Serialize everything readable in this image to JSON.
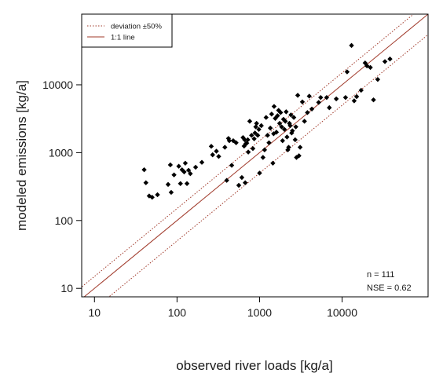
{
  "chart_data": {
    "type": "scatter",
    "xlabel": "observed river loads [kg/a]",
    "ylabel": "modeled emissions [kg/a]",
    "x_scale": "log",
    "y_scale": "log",
    "xlim": [
      7,
      110000
    ],
    "ylim": [
      7.5,
      110000
    ],
    "x_ticks": [
      10,
      100,
      1000,
      10000
    ],
    "x_tick_labels": [
      "10",
      "100",
      "1000",
      "10000"
    ],
    "y_ticks": [
      10,
      100,
      1000,
      10000
    ],
    "y_tick_labels": [
      "10",
      "100",
      "1000",
      "10000"
    ],
    "grid": false,
    "legend": {
      "placement": "top-left",
      "entries": [
        {
          "label": "deviation ±50%",
          "style": "dotted",
          "color": "#a0392a"
        },
        {
          "label": "1:1 line",
          "style": "solid",
          "color": "#a0392a"
        }
      ]
    },
    "annotations": [
      "n = 111",
      "NSE = 0.62"
    ],
    "colors": {
      "points": "#000000",
      "line": "#a0392a",
      "frame": "#000000"
    },
    "lines": [
      {
        "name": "1:1 line",
        "factor": 1.0,
        "style": "solid"
      },
      {
        "name": "deviation ±50%",
        "factor": 1.5,
        "style": "dotted"
      },
      {
        "name": "deviation ±50%",
        "factor": 0.5,
        "style": "dotted"
      }
    ],
    "points": [
      [
        40,
        560
      ],
      [
        42,
        360
      ],
      [
        46,
        230
      ],
      [
        50,
        220
      ],
      [
        58,
        240
      ],
      [
        78,
        340
      ],
      [
        83,
        660
      ],
      [
        85,
        260
      ],
      [
        92,
        470
      ],
      [
        105,
        630
      ],
      [
        110,
        350
      ],
      [
        115,
        560
      ],
      [
        122,
        520
      ],
      [
        126,
        700
      ],
      [
        132,
        350
      ],
      [
        138,
        550
      ],
      [
        145,
        490
      ],
      [
        168,
        610
      ],
      [
        200,
        720
      ],
      [
        260,
        1240
      ],
      [
        270,
        930
      ],
      [
        300,
        1050
      ],
      [
        320,
        880
      ],
      [
        380,
        1200
      ],
      [
        400,
        390
      ],
      [
        420,
        1620
      ],
      [
        430,
        1500
      ],
      [
        460,
        650
      ],
      [
        480,
        1500
      ],
      [
        520,
        1400
      ],
      [
        560,
        330
      ],
      [
        610,
        430
      ],
      [
        630,
        1670
      ],
      [
        650,
        1250
      ],
      [
        660,
        1550
      ],
      [
        670,
        360
      ],
      [
        680,
        1350
      ],
      [
        700,
        1380
      ],
      [
        720,
        1550
      ],
      [
        730,
        1020
      ],
      [
        760,
        2900
      ],
      [
        800,
        1800
      ],
      [
        830,
        1150
      ],
      [
        860,
        1600
      ],
      [
        880,
        1950
      ],
      [
        900,
        2400
      ],
      [
        920,
        2700
      ],
      [
        950,
        1800
      ],
      [
        980,
        2200
      ],
      [
        1000,
        500
      ],
      [
        1050,
        2500
      ],
      [
        1100,
        850
      ],
      [
        1150,
        1100
      ],
      [
        1200,
        3300
      ],
      [
        1250,
        1800
      ],
      [
        1300,
        1400
      ],
      [
        1350,
        2300
      ],
      [
        1400,
        3700
      ],
      [
        1450,
        700
      ],
      [
        1480,
        1900
      ],
      [
        1500,
        4800
      ],
      [
        1550,
        3200
      ],
      [
        1600,
        2000
      ],
      [
        1650,
        3500
      ],
      [
        1700,
        4200
      ],
      [
        1750,
        2700
      ],
      [
        1800,
        3900
      ],
      [
        1850,
        2400
      ],
      [
        1900,
        1500
      ],
      [
        1950,
        3100
      ],
      [
        2000,
        2200
      ],
      [
        2050,
        2900
      ],
      [
        2100,
        4000
      ],
      [
        2150,
        1700
      ],
      [
        2200,
        1100
      ],
      [
        2250,
        1200
      ],
      [
        2300,
        2700
      ],
      [
        2350,
        2500
      ],
      [
        2400,
        3600
      ],
      [
        2450,
        1950
      ],
      [
        2500,
        2100
      ],
      [
        2600,
        3300
      ],
      [
        2700,
        1550
      ],
      [
        2750,
        2400
      ],
      [
        2800,
        850
      ],
      [
        2900,
        7000
      ],
      [
        3000,
        900
      ],
      [
        3100,
        1200
      ],
      [
        3300,
        5600
      ],
      [
        3500,
        2900
      ],
      [
        3800,
        3900
      ],
      [
        4000,
        6800
      ],
      [
        4300,
        4400
      ],
      [
        5200,
        5500
      ],
      [
        5500,
        6500
      ],
      [
        6500,
        6500
      ],
      [
        7000,
        4600
      ],
      [
        8500,
        6200
      ],
      [
        11000,
        6500
      ],
      [
        11500,
        15500
      ],
      [
        13000,
        38000
      ],
      [
        14000,
        5800
      ],
      [
        15000,
        6700
      ],
      [
        17000,
        8300
      ],
      [
        19000,
        21000
      ],
      [
        20000,
        19000
      ],
      [
        22000,
        18000
      ],
      [
        24000,
        6000
      ],
      [
        27000,
        12000
      ],
      [
        33000,
        22000
      ],
      [
        38000,
        24000
      ]
    ]
  }
}
